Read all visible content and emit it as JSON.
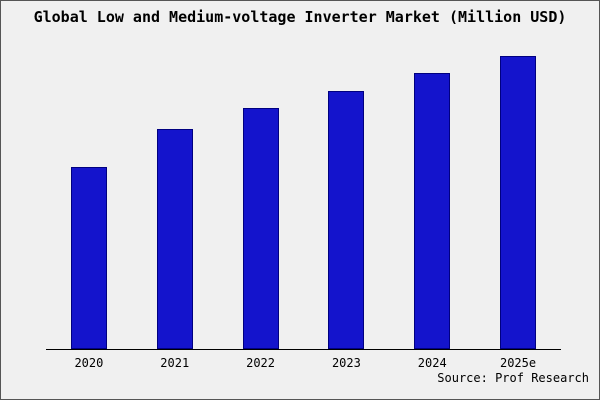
{
  "title": "Global Low and Medium-voltage Inverter Market (Million USD)",
  "source": "Source: Prof Research",
  "colors": {
    "bar_fill": "#1414cc",
    "bar_border": "#000080",
    "background": "#f0f0f0",
    "axis": "#000000"
  },
  "chart_data": {
    "type": "bar",
    "categories": [
      "2020",
      "2021",
      "2022",
      "2023",
      "2024",
      "2025e"
    ],
    "values": [
      62,
      75,
      82,
      88,
      94,
      100
    ],
    "title": "Global Low and Medium-voltage Inverter Market (Million USD)",
    "xlabel": "",
    "ylabel": "",
    "ylim": [
      0,
      105
    ],
    "grid": false,
    "legend": false,
    "y_axis_visible": false,
    "value_scale": "relative heights, 2025e = 100"
  }
}
